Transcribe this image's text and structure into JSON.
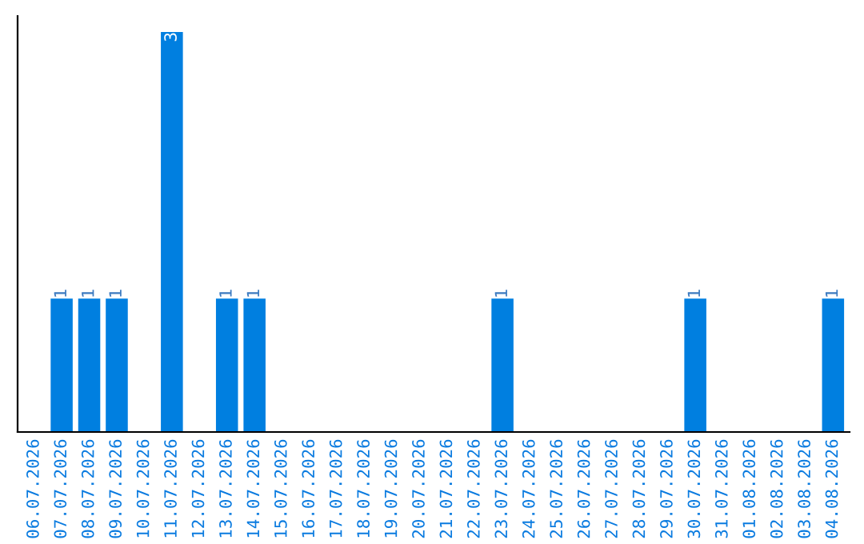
{
  "chart_data": {
    "type": "bar",
    "categories": [
      "06.07.2026",
      "07.07.2026",
      "08.07.2026",
      "09.07.2026",
      "10.07.2026",
      "11.07.2026",
      "12.07.2026",
      "13.07.2026",
      "14.07.2026",
      "15.07.2026",
      "16.07.2026",
      "17.07.2026",
      "18.07.2026",
      "19.07.2026",
      "20.07.2026",
      "21.07.2026",
      "22.07.2026",
      "23.07.2026",
      "24.07.2026",
      "25.07.2026",
      "26.07.2026",
      "27.07.2026",
      "28.07.2026",
      "29.07.2026",
      "30.07.2026",
      "31.07.2026",
      "01.08.2026",
      "02.08.2026",
      "03.08.2026",
      "04.08.2026"
    ],
    "values": [
      0,
      1,
      1,
      1,
      0,
      3,
      0,
      1,
      1,
      0,
      0,
      0,
      0,
      0,
      0,
      0,
      0,
      1,
      0,
      0,
      0,
      0,
      0,
      0,
      1,
      0,
      0,
      0,
      0,
      1
    ],
    "value_labels": [
      null,
      "1",
      "1",
      "1",
      null,
      "3",
      null,
      "1",
      "1",
      null,
      null,
      null,
      null,
      null,
      null,
      null,
      null,
      "1",
      null,
      null,
      null,
      null,
      null,
      null,
      "1",
      null,
      null,
      null,
      null,
      "1"
    ],
    "color": "#007fe0",
    "tick_labels": "x",
    "grid": false,
    "legend": false
  }
}
